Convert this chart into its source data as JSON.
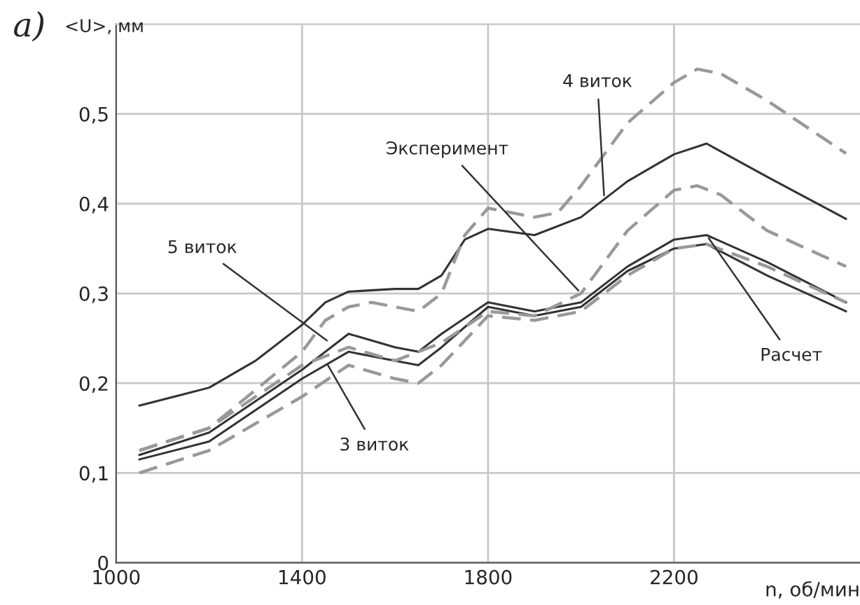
{
  "chart_data": {
    "type": "line",
    "title": "a)",
    "xlabel": "n, об/мин",
    "ylabel": "<U>, мм",
    "xlim": [
      1000,
      2600
    ],
    "xticks": [
      1000,
      1400,
      1800,
      2200
    ],
    "ylim": [
      0,
      0.6
    ],
    "yticks": [
      {
        "value": 0,
        "label": "0"
      },
      {
        "value": 0.1,
        "label": "0,1"
      },
      {
        "value": 0.2,
        "label": "0,2"
      },
      {
        "value": 0.3,
        "label": "0,3"
      },
      {
        "value": 0.4,
        "label": "0,4"
      },
      {
        "value": 0.5,
        "label": "0,5"
      }
    ],
    "grid": true,
    "legend": false,
    "marker": "none",
    "series": [
      {
        "color": "#333333",
        "line_style": "solid",
        "x": [
          1050,
          1200,
          1300,
          1400,
          1450,
          1500,
          1600,
          1650,
          1700,
          1750,
          1800,
          1900,
          2000,
          2100,
          2200,
          2270,
          2400,
          2570
        ],
        "values": [
          0.175,
          0.195,
          0.225,
          0.265,
          0.29,
          0.302,
          0.305,
          0.305,
          0.32,
          0.36,
          0.372,
          0.365,
          0.385,
          0.425,
          0.455,
          0.467,
          0.43,
          0.383
        ]
      },
      {
        "color": "#999999",
        "line_style": "dashed",
        "x": [
          1050,
          1200,
          1400,
          1450,
          1500,
          1550,
          1650,
          1700,
          1750,
          1800,
          1900,
          1950,
          2000,
          2100,
          2200,
          2250,
          2300,
          2400,
          2570
        ],
        "values": [
          0.125,
          0.15,
          0.235,
          0.27,
          0.285,
          0.29,
          0.28,
          0.3,
          0.365,
          0.395,
          0.385,
          0.39,
          0.42,
          0.49,
          0.535,
          0.55,
          0.545,
          0.515,
          0.456
        ]
      },
      {
        "color": "#333333",
        "line_style": "solid",
        "x": [
          1050,
          1200,
          1400,
          1500,
          1600,
          1650,
          1700,
          1800,
          1900,
          2000,
          2100,
          2200,
          2270,
          2400,
          2570
        ],
        "values": [
          0.12,
          0.145,
          0.215,
          0.255,
          0.24,
          0.235,
          0.255,
          0.29,
          0.28,
          0.29,
          0.33,
          0.36,
          0.365,
          0.335,
          0.29
        ]
      },
      {
        "color": "#333333",
        "line_style": "solid",
        "x": [
          1050,
          1200,
          1400,
          1500,
          1600,
          1650,
          1700,
          1800,
          1900,
          2000,
          2100,
          2200,
          2270,
          2400,
          2570
        ],
        "values": [
          0.115,
          0.135,
          0.205,
          0.235,
          0.225,
          0.22,
          0.24,
          0.285,
          0.275,
          0.285,
          0.325,
          0.35,
          0.355,
          0.32,
          0.28
        ]
      },
      {
        "color": "#999999",
        "line_style": "dashed",
        "x": [
          1050,
          1200,
          1400,
          1500,
          1600,
          1700,
          1800,
          1900,
          2000,
          2100,
          2200,
          2250,
          2300,
          2400,
          2570
        ],
        "values": [
          0.125,
          0.15,
          0.22,
          0.24,
          0.225,
          0.245,
          0.28,
          0.275,
          0.3,
          0.37,
          0.415,
          0.42,
          0.41,
          0.37,
          0.33
        ]
      },
      {
        "color": "#999999",
        "line_style": "dashed",
        "x": [
          1050,
          1200,
          1400,
          1500,
          1600,
          1650,
          1700,
          1800,
          1900,
          2000,
          2100,
          2200,
          2270,
          2400,
          2570
        ],
        "values": [
          0.1,
          0.125,
          0.185,
          0.22,
          0.205,
          0.2,
          0.22,
          0.275,
          0.27,
          0.28,
          0.32,
          0.35,
          0.355,
          0.33,
          0.29
        ]
      }
    ],
    "annotations": [
      {
        "text": "4 виток",
        "x": 2050,
        "y": 0.405
      },
      {
        "text": "Эксперимент",
        "x": 2000,
        "y": 0.3
      },
      {
        "text": "5 виток",
        "x": 1460,
        "y": 0.245
      },
      {
        "text": "3 виток",
        "x": 1450,
        "y": 0.225
      },
      {
        "text": "Расчет",
        "x": 2270,
        "y": 0.365
      }
    ]
  }
}
